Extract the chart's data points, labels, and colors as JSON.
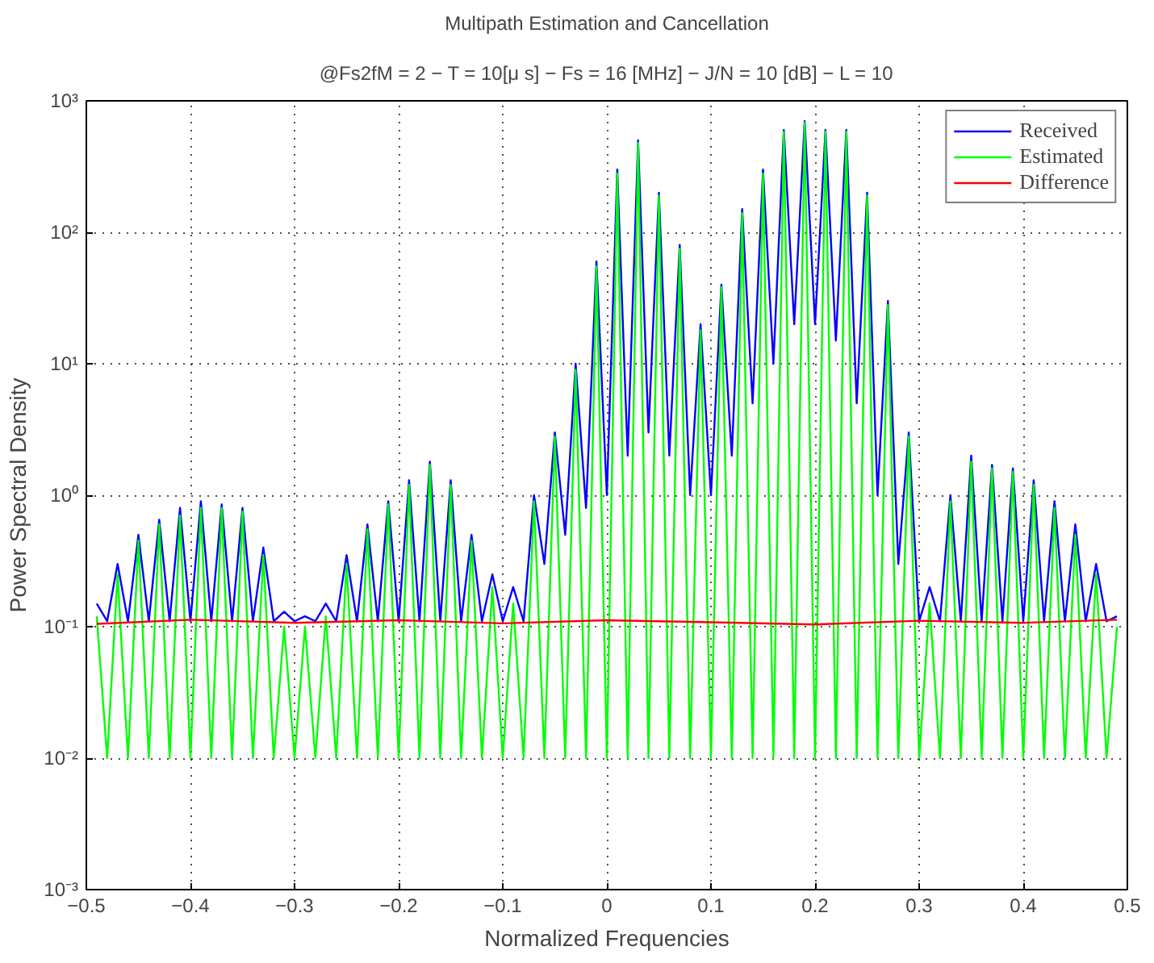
{
  "chart_data": {
    "type": "line",
    "title": "Multipath Estimation and Cancellation",
    "subtitle": "@Fs2fM = 2 − T = 10[μ s] − Fs = 16 [MHz] − J/N = 10 [dB] − L = 10",
    "xlabel": "Normalized Frequencies",
    "ylabel": "Power Spectral Density",
    "log": "y",
    "grid": true,
    "legend": "top right",
    "line_style": "solid",
    "marker": "none",
    "xlim": [
      -0.5,
      0.5
    ],
    "ylim": [
      0.001,
      1000
    ],
    "xticks": [
      {
        "value": -0.5,
        "label": "−0.5"
      },
      {
        "value": -0.4,
        "label": "−0.4"
      },
      {
        "value": -0.3,
        "label": "−0.3"
      },
      {
        "value": -0.2,
        "label": "−0.2"
      },
      {
        "value": -0.1,
        "label": "−0.1"
      },
      0,
      0.1,
      0.2,
      0.3,
      0.4,
      0.5
    ],
    "yticks": [
      {
        "value": 0.001,
        "label": "10⁻³"
      },
      {
        "value": 0.01,
        "label": "10⁻²"
      },
      {
        "value": 0.1,
        "label": "10⁻¹"
      },
      {
        "value": 1,
        "label": "10⁰"
      },
      {
        "value": 10,
        "label": "10¹"
      },
      {
        "value": 100,
        "label": "10²"
      },
      {
        "value": 1000,
        "label": "10³"
      }
    ],
    "x": [
      -0.49,
      -0.48,
      -0.47,
      -0.46,
      -0.45,
      -0.44,
      -0.43,
      -0.42,
      -0.41,
      -0.4,
      -0.39,
      -0.38,
      -0.37,
      -0.36,
      -0.35,
      -0.34,
      -0.33,
      -0.32,
      -0.31,
      -0.3,
      -0.29,
      -0.28,
      -0.27,
      -0.26,
      -0.25,
      -0.24,
      -0.23,
      -0.22,
      -0.21,
      -0.2,
      -0.19,
      -0.18,
      -0.17,
      -0.16,
      -0.15,
      -0.14,
      -0.13,
      -0.12,
      -0.11,
      -0.1,
      -0.09,
      -0.08,
      -0.07,
      -0.06,
      -0.05,
      -0.04,
      -0.03,
      -0.02,
      -0.01,
      0,
      0.01,
      0.02,
      0.03,
      0.04,
      0.05,
      0.06,
      0.07,
      0.08,
      0.09,
      0.1,
      0.11,
      0.12,
      0.13,
      0.14,
      0.15,
      0.16,
      0.17,
      0.18,
      0.19,
      0.2,
      0.21,
      0.22,
      0.23,
      0.24,
      0.25,
      0.26,
      0.27,
      0.28,
      0.29,
      0.3,
      0.31,
      0.32,
      0.33,
      0.34,
      0.35,
      0.36,
      0.37,
      0.38,
      0.39,
      0.4,
      0.41,
      0.42,
      0.43,
      0.44,
      0.45,
      0.46,
      0.47,
      0.48,
      0.49
    ],
    "series": [
      {
        "name": "Received",
        "color": "#0000ff",
        "values": [
          0.15,
          0.11,
          0.3,
          0.11,
          0.5,
          0.11,
          0.65,
          0.11,
          0.8,
          0.11,
          0.9,
          0.11,
          0.85,
          0.11,
          0.8,
          0.11,
          0.4,
          0.11,
          0.13,
          0.11,
          0.12,
          0.11,
          0.15,
          0.11,
          0.35,
          0.11,
          0.6,
          0.11,
          0.9,
          0.11,
          1.3,
          0.11,
          1.8,
          0.11,
          1.3,
          0.11,
          0.5,
          0.11,
          0.25,
          0.11,
          0.2,
          0.11,
          1,
          0.3,
          3,
          0.5,
          10,
          0.8,
          60,
          1,
          300,
          2,
          500,
          3,
          200,
          2,
          80,
          1,
          20,
          1,
          40,
          2,
          150,
          5,
          300,
          10,
          600,
          20,
          700,
          20,
          600,
          15,
          600,
          5,
          200,
          1,
          30,
          0.3,
          3,
          0.11,
          0.2,
          0.11,
          1,
          0.11,
          2,
          0.11,
          1.7,
          0.11,
          1.6,
          0.11,
          1.3,
          0.11,
          0.9,
          0.11,
          0.6,
          0.11,
          0.3,
          0.11,
          0.12
        ]
      },
      {
        "name": "Estimated",
        "color": "#00ff00",
        "values": [
          0.12,
          0.01,
          0.25,
          0.01,
          0.45,
          0.01,
          0.6,
          0.01,
          0.7,
          0.01,
          0.8,
          0.01,
          0.8,
          0.01,
          0.75,
          0.01,
          0.35,
          0.01,
          0.1,
          0.01,
          0.1,
          0.01,
          0.12,
          0.01,
          0.3,
          0.01,
          0.55,
          0.01,
          0.85,
          0.01,
          1.2,
          0.01,
          1.7,
          0.01,
          1.2,
          0.01,
          0.45,
          0.01,
          0.2,
          0.01,
          0.15,
          0.01,
          0.9,
          0.01,
          2.8,
          0.01,
          9,
          0.01,
          55,
          0.01,
          280,
          0.01,
          480,
          0.01,
          190,
          0.01,
          75,
          0.01,
          18,
          0.01,
          38,
          0.01,
          140,
          0.01,
          280,
          0.01,
          580,
          0.01,
          680,
          0.01,
          580,
          0.01,
          580,
          0.01,
          190,
          0.01,
          28,
          0.01,
          2.8,
          0.01,
          0.15,
          0.01,
          0.9,
          0.01,
          1.8,
          0.01,
          1.6,
          0.01,
          1.5,
          0.01,
          1.2,
          0.01,
          0.8,
          0.01,
          0.5,
          0.01,
          0.25,
          0.01,
          0.1
        ]
      },
      {
        "name": "Difference",
        "color": "#ff0000",
        "x": [
          -0.49,
          -0.4,
          -0.3,
          -0.2,
          -0.1,
          0,
          0.1,
          0.2,
          0.3,
          0.4,
          0.49
        ],
        "values": [
          0.105,
          0.113,
          0.107,
          0.112,
          0.106,
          0.112,
          0.108,
          0.104,
          0.111,
          0.107,
          0.113
        ]
      }
    ]
  }
}
